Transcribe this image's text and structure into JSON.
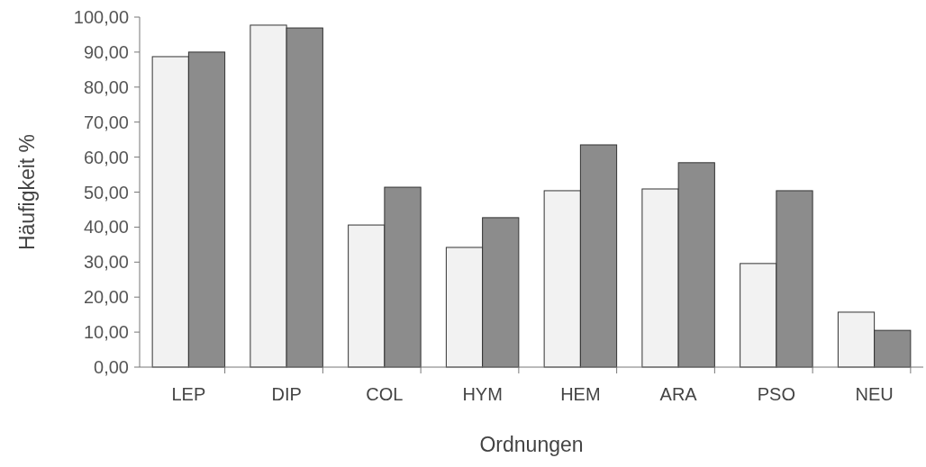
{
  "chart_data": {
    "type": "bar",
    "xlabel": "Ordnungen",
    "ylabel": "Häufigkeit %",
    "categories": [
      "LEP",
      "DIP",
      "COL",
      "HYM",
      "HEM",
      "ARA",
      "PSO",
      "NEU"
    ],
    "series": [
      {
        "color": "#f2f2f2",
        "values": [
          88.7,
          97.7,
          40.6,
          34.2,
          50.4,
          50.9,
          29.6,
          15.7
        ]
      },
      {
        "color": "#8c8c8c",
        "values": [
          90.0,
          96.9,
          51.4,
          42.7,
          63.5,
          58.4,
          50.4,
          10.5
        ]
      }
    ],
    "ylim": [
      0,
      100
    ],
    "yticks": [
      {
        "value": 0,
        "label": "0,00"
      },
      {
        "value": 10,
        "label": "10,00"
      },
      {
        "value": 20,
        "label": "20,00"
      },
      {
        "value": 30,
        "label": "30,00"
      },
      {
        "value": 40,
        "label": "40,00"
      },
      {
        "value": 50,
        "label": "50,00"
      },
      {
        "value": 60,
        "label": "60,00"
      },
      {
        "value": 70,
        "label": "70,00"
      },
      {
        "value": 80,
        "label": "80,00"
      },
      {
        "value": 90,
        "label": "90,00"
      },
      {
        "value": 100,
        "label": "100,00"
      }
    ],
    "grid": false
  }
}
